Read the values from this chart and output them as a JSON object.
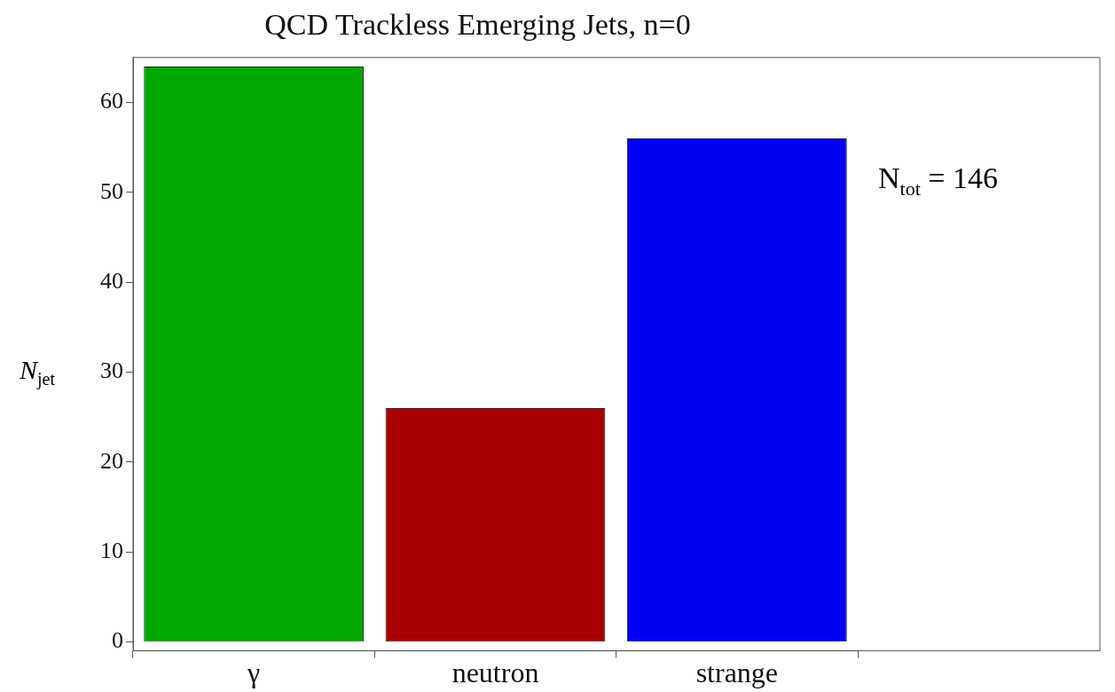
{
  "chart_data": {
    "type": "bar",
    "title": "QCD Trackless Emerging Jets, n=0",
    "ylabel": "N$_{jet}$",
    "categories": [
      "γ",
      "neutron",
      "strange"
    ],
    "values": [
      64,
      26,
      56
    ],
    "colors": [
      "#00a800",
      "#a80000",
      "#0000f5"
    ],
    "ylim": [
      -1,
      65
    ],
    "yticks": [
      0,
      10,
      20,
      30,
      40,
      50,
      60
    ],
    "grid": false,
    "legend": false,
    "annotations": [
      {
        "text": "N$_{tot}$ = 146"
      }
    ]
  }
}
